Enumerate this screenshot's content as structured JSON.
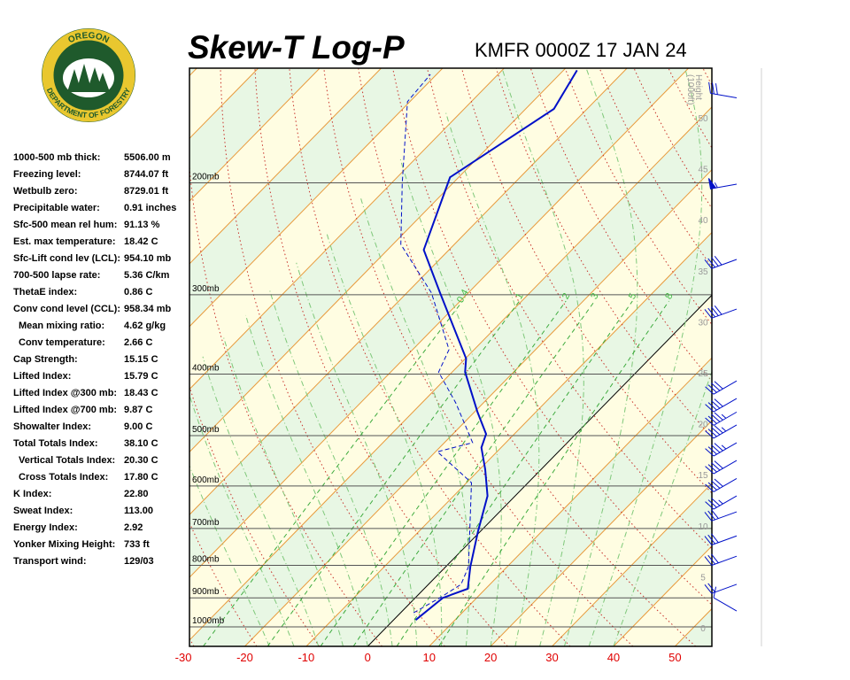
{
  "logo": {
    "top": "OREGON",
    "bottom": "DEPARTMENT OF FORESTRY"
  },
  "stats": [
    {
      "label": "1000-500 mb thick:",
      "value": "5506.00 m"
    },
    {
      "label": "Freezing level:",
      "value": "8744.07 ft"
    },
    {
      "label": "Wetbulb zero:",
      "value": "8729.01 ft"
    },
    {
      "label": "Precipitable water:",
      "value": "0.91 inches"
    },
    {
      "label": "Sfc-500 mean rel hum:",
      "value": "91.13 %"
    },
    {
      "label": "Est. max temperature:",
      "value": "18.42 C"
    },
    {
      "label": "Sfc-Lift cond lev (LCL):",
      "value": "954.10 mb"
    },
    {
      "label": "700-500 lapse rate:",
      "value": "5.36 C/km"
    },
    {
      "label": "ThetaE index:",
      "value": "0.86 C"
    },
    {
      "label": "Conv cond level (CCL):",
      "value": "958.34 mb"
    },
    {
      "label": "Mean mixing ratio:",
      "value": "4.62 g/kg",
      "indent": true
    },
    {
      "label": "Conv temperature:",
      "value": "2.66 C",
      "indent": true
    },
    {
      "label": "Cap Strength:",
      "value": "15.15 C"
    },
    {
      "label": "Lifted Index:",
      "value": "15.79 C"
    },
    {
      "label": "Lifted Index @300 mb:",
      "value": "18.43 C"
    },
    {
      "label": "Lifted Index @700 mb:",
      "value": "9.87 C"
    },
    {
      "label": "Showalter Index:",
      "value": "9.00 C"
    },
    {
      "label": "Total Totals Index:",
      "value": "38.10 C"
    },
    {
      "label": "Vertical Totals Index:",
      "value": "20.30 C",
      "indent": true
    },
    {
      "label": "Cross Totals Index:",
      "value": "17.80 C",
      "indent": true
    },
    {
      "label": "K Index:",
      "value": "22.80"
    },
    {
      "label": "Sweat Index:",
      "value": "113.00"
    },
    {
      "label": "Energy Index:",
      "value": "2.92"
    },
    {
      "label": "Yonker Mixing Height:",
      "value": "733 ft"
    },
    {
      "label": "Transport wind:",
      "value": "129/03"
    }
  ],
  "chart_data": {
    "type": "skewt",
    "title": "Skew-T Log-P",
    "subtitle": "KMFR 0000Z 17 JAN 24",
    "ylog": true,
    "ylim": [
      1073,
      132
    ],
    "yticks": [
      {
        "value": 1000,
        "label": "1000mb"
      },
      {
        "value": 900,
        "label": "900mb"
      },
      {
        "value": 800,
        "label": "800mb"
      },
      {
        "value": 700,
        "label": "700mb"
      },
      {
        "value": 600,
        "label": "600mb"
      },
      {
        "value": 500,
        "label": "500mb"
      },
      {
        "value": 400,
        "label": "400mb"
      },
      {
        "value": 300,
        "label": "300mb"
      },
      {
        "value": 200,
        "label": "200mb"
      }
    ],
    "xlim": [
      -29,
      56
    ],
    "xticks": [
      -30,
      -20,
      -10,
      0,
      10,
      20,
      30,
      40,
      50
    ],
    "height_label": [
      "Height",
      "(1000ft)"
    ],
    "height_ticks": [
      0,
      5,
      10,
      15,
      20,
      25,
      30,
      35,
      40,
      45,
      50
    ],
    "mixing_ratios": [
      0.4,
      1,
      2,
      3,
      5,
      8
    ],
    "series": [
      {
        "color": "#0010c8",
        "dash": false,
        "pressure": [
          975,
          900,
          871,
          804,
          707,
          622,
          565,
          522,
          497,
          459,
          397,
          378,
          298,
          255,
          196,
          153,
          133
        ],
        "values": [
          3.6,
          4.5,
          7.1,
          4.0,
          -0.4,
          -4.5,
          -9.1,
          -13.2,
          -14.6,
          -19.5,
          -27.9,
          -29.9,
          -44.6,
          -54.1,
          -61.4,
          -55.4,
          -57.8
        ]
      },
      {
        "color": "#0010c8",
        "dash": true,
        "pressure": [
          950,
          900,
          857,
          804,
          593,
          530,
          513,
          444,
          397,
          366,
          298,
          250,
          200,
          149,
          135
        ],
        "values": [
          2.1,
          4.0,
          5.3,
          3.7,
          -9.2,
          -19.7,
          -15.4,
          -24.5,
          -32.2,
          -34.1,
          -46.0,
          -58.7,
          -68.3,
          -80.4,
          -81.0
        ]
      }
    ],
    "winds": {
      "color": "#0010c8",
      "pressure": [
        944,
        857,
        774,
        719,
        659,
        622,
        584,
        547,
        513,
        481,
        459,
        437,
        410,
        316,
        264,
        201,
        147
      ],
      "direction": [
        300,
        250,
        250,
        250,
        250,
        240,
        240,
        240,
        240,
        240,
        240,
        240,
        240,
        250,
        250,
        260,
        280
      ],
      "speed": [
        10,
        20,
        30,
        30,
        30,
        35,
        40,
        40,
        45,
        45,
        45,
        40,
        40,
        40,
        40,
        55,
        30
      ]
    }
  }
}
